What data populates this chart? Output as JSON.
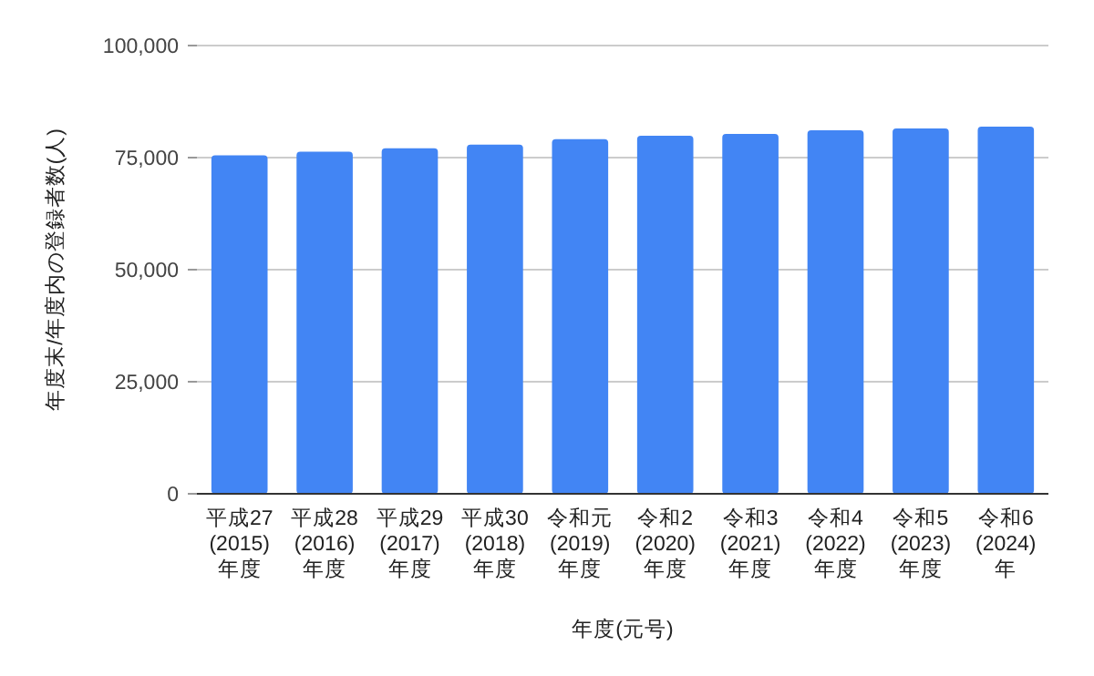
{
  "chart_data": {
    "type": "bar",
    "xlabel": "年度(元号)",
    "ylabel": "年度末/年度内の登録者数(人)",
    "categories": [
      "平成27\n(2015)\n年度",
      "平成28\n(2016)\n年度",
      "平成29\n(2017)\n年度",
      "平成30\n(2018)\n年度",
      "令和元\n(2019)\n年度",
      "令和2\n(2020)\n年度",
      "令和3\n(2021)\n年度",
      "令和4\n(2022)\n年度",
      "令和5\n(2023)\n年度",
      "令和6\n(2024)\n年"
    ],
    "values": [
      75500,
      76300,
      77100,
      77900,
      79100,
      79900,
      80300,
      81100,
      81500,
      81900
    ],
    "color": "#4285f4",
    "ylim": [
      0,
      100000
    ],
    "yticks": [
      {
        "value": 0,
        "label": "0"
      },
      {
        "value": 25000,
        "label": "25,000"
      },
      {
        "value": 50000,
        "label": "50,000"
      },
      {
        "value": 75000,
        "label": "75,000"
      },
      {
        "value": 100000,
        "label": "100,000"
      }
    ],
    "grid": "y"
  }
}
